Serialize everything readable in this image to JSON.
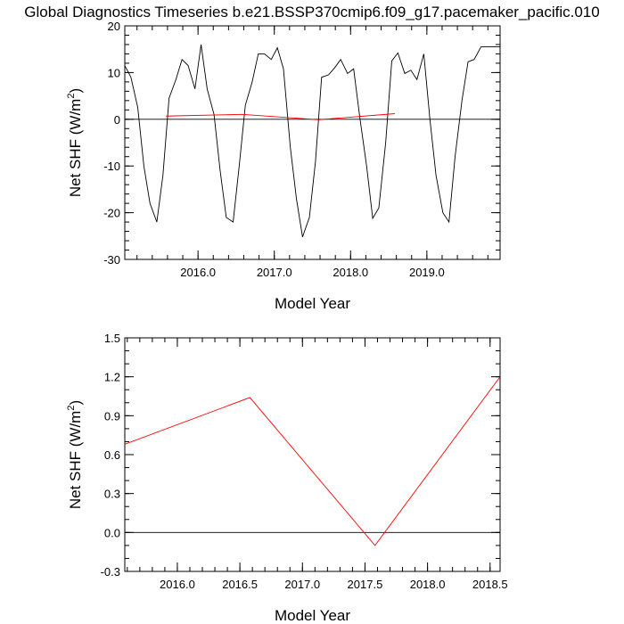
{
  "title": "Global Diagnostics Timeseries b.e21.BSSP370cmip6.f09_g17.pacemaker_pacific.010",
  "colors": {
    "monthly": "#000000",
    "annual": "#ff0000",
    "zero_line": "#000000"
  },
  "chart_data": [
    {
      "type": "line",
      "xlabel": "Model Year",
      "ylabel": "Net SHF (W/m",
      "ylabel_sup": "2",
      "ylabel_close": ")",
      "xlim": [
        2015.04,
        2019.96
      ],
      "ylim": [
        -30,
        20
      ],
      "xticks": [
        2016.0,
        2017.0,
        2018.0,
        2019.0
      ],
      "xtick_labels": [
        "2016.0",
        "2017.0",
        "2018.0",
        "2019.0"
      ],
      "yticks": [
        -30,
        -20,
        -10,
        0,
        10,
        20
      ],
      "ytick_labels": [
        "-30",
        "-20",
        "-10",
        "0",
        "10",
        "20"
      ],
      "reference_line": 0,
      "series": [
        {
          "color": "#000000",
          "x": [
            2015.04,
            2015.12,
            2015.21,
            2015.29,
            2015.37,
            2015.46,
            2015.54,
            2015.62,
            2015.71,
            2015.79,
            2015.87,
            2015.96,
            2016.04,
            2016.12,
            2016.21,
            2016.29,
            2016.37,
            2016.46,
            2016.54,
            2016.62,
            2016.71,
            2016.79,
            2016.87,
            2016.96,
            2017.04,
            2017.12,
            2017.21,
            2017.29,
            2017.37,
            2017.46,
            2017.54,
            2017.62,
            2017.71,
            2017.79,
            2017.87,
            2017.96,
            2018.04,
            2018.12,
            2018.21,
            2018.29,
            2018.37,
            2018.46,
            2018.54,
            2018.62,
            2018.71,
            2018.79,
            2018.87,
            2018.96,
            2019.04,
            2019.12,
            2019.21,
            2019.29,
            2019.37,
            2019.46,
            2019.54,
            2019.62,
            2019.71,
            2019.79,
            2019.87,
            2019.96
          ],
          "y": [
            11.5,
            9.0,
            2.5,
            -10.0,
            -18.0,
            -22.0,
            -12.0,
            4.5,
            8.5,
            12.8,
            11.5,
            6.5,
            16.0,
            6.5,
            1.0,
            -11.0,
            -21.0,
            -22.0,
            -10.0,
            3.0,
            8.0,
            14.0,
            14.0,
            12.8,
            15.3,
            10.8,
            -6.0,
            -17.0,
            -25.2,
            -21.0,
            -9.0,
            9.0,
            9.5,
            11.0,
            12.8,
            9.8,
            10.8,
            0.5,
            -10.0,
            -21.2,
            -19.0,
            -5.0,
            12.5,
            14.2,
            9.8,
            10.5,
            8.5,
            14.0,
            0.0,
            -12.0,
            -20.0,
            -22.0,
            -8.0,
            4.0,
            12.3,
            12.8,
            15.5,
            15.5,
            15.5,
            15.5
          ]
        },
        {
          "color": "#ff0000",
          "x": [
            2015.58,
            2016.58,
            2017.58,
            2018.58
          ],
          "y": [
            0.68,
            1.04,
            -0.1,
            1.2
          ]
        }
      ]
    },
    {
      "type": "line",
      "xlabel": "Model Year",
      "ylabel": "Net SHF (W/m",
      "ylabel_sup": "2",
      "ylabel_close": ")",
      "xlim": [
        2015.58,
        2018.58
      ],
      "ylim": [
        -0.3,
        1.5
      ],
      "xticks": [
        2016.0,
        2016.5,
        2017.0,
        2017.5,
        2018.0,
        2018.5
      ],
      "xtick_labels": [
        "2016.0",
        "2016.5",
        "2017.0",
        "2017.5",
        "2018.0",
        "2018.5"
      ],
      "yticks": [
        -0.3,
        0.0,
        0.3,
        0.6,
        0.9,
        1.2,
        1.5
      ],
      "ytick_labels": [
        "-0.3",
        "0.0",
        "0.3",
        "0.6",
        "0.9",
        "1.2",
        "1.5"
      ],
      "reference_line": 0,
      "series": [
        {
          "color": "#ff0000",
          "x": [
            2015.58,
            2016.58,
            2017.58,
            2018.58
          ],
          "y": [
            0.68,
            1.04,
            -0.1,
            1.2
          ]
        }
      ]
    }
  ]
}
